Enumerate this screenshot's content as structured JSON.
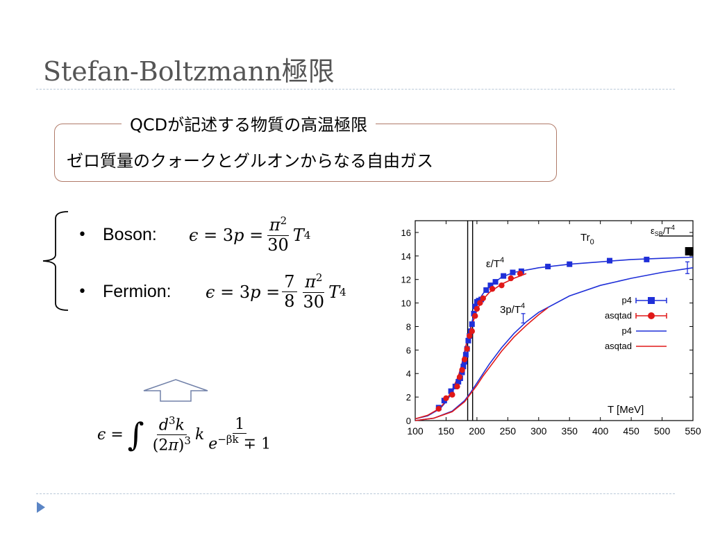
{
  "slide": {
    "title": "Stefan-Boltzmann極限",
    "callout_heading": "QCDが記述する物質の高温極限",
    "callout_text": "ゼロ質量のクォークとグルオンからなる自由ガス"
  },
  "bullets": [
    {
      "label": "Boson:",
      "formula": "ε = 3p = (π²/30) T⁴"
    },
    {
      "label": "Fermion:",
      "formula": "ε = 3p = (7/8)(π²/30) T⁴"
    }
  ],
  "bottom_formula": "ε = ∫ d³k/(2π)³ k 1/(e^{−βk} ∓ 1)",
  "colors": {
    "title": "#555555",
    "callout_border": "#b07a68",
    "arrow": "#7080a8",
    "p4": "#1f2fd8",
    "asqtad": "#e01818",
    "dash": "#b8c8d8"
  },
  "chart_data": {
    "type": "scatter",
    "xlim": [
      100,
      550
    ],
    "ylim": [
      0,
      17
    ],
    "x_ticks": [
      100,
      150,
      200,
      250,
      300,
      350,
      400,
      450,
      500,
      550
    ],
    "y_ticks": [
      0,
      2,
      4,
      6,
      8,
      10,
      12,
      14,
      16
    ],
    "xlabel": "T [MeV]",
    "annotations": {
      "tr0": "Tr",
      "tr0_sub": "0",
      "esb_a": "ε",
      "esb_sub": "SB",
      "esb_b": "/T",
      "esb_sup": "4",
      "eps_a": "ε/T",
      "eps_sup": "4",
      "threep_a": "3p/T",
      "threep_sup": "4"
    },
    "vertical_lines": [
      185,
      193
    ],
    "sb_limit": {
      "x": [
        495,
        550
      ],
      "y": 15.7
    },
    "sb_marker": {
      "x": 544,
      "y": 14.4
    },
    "error_bars": [
      {
        "x": 541,
        "y": 13.0,
        "err": 0.5
      },
      {
        "x": 275,
        "y": 8.7,
        "err": 0.4
      }
    ],
    "series": [
      {
        "name": "p4",
        "kind": "points",
        "marker": "square",
        "color": "#1f2fd8",
        "x": [
          138,
          147,
          158,
          165,
          170,
          173,
          176,
          178,
          180,
          182,
          184,
          186,
          188,
          190,
          192,
          195,
          197,
          200,
          203,
          207,
          215,
          222,
          230,
          243,
          258,
          272,
          315,
          350,
          415,
          475
        ],
        "y": [
          1.1,
          1.7,
          2.5,
          2.9,
          3.3,
          3.6,
          4.1,
          4.6,
          5.0,
          5.6,
          6.1,
          6.8,
          7.2,
          7.6,
          8.2,
          9.1,
          9.7,
          10.1,
          10.2,
          10.3,
          11.1,
          11.5,
          11.8,
          12.3,
          12.6,
          12.7,
          13.1,
          13.3,
          13.6,
          13.7
        ]
      },
      {
        "name": "asqtad",
        "kind": "points",
        "marker": "circle",
        "color": "#e01818",
        "x": [
          138,
          150,
          160,
          168,
          172,
          176,
          180,
          184,
          188,
          192,
          197,
          200,
          205,
          210,
          225,
          240,
          255,
          270
        ],
        "y": [
          1.0,
          1.9,
          2.2,
          2.9,
          3.7,
          4.3,
          5.2,
          6.1,
          7.2,
          7.6,
          8.9,
          9.5,
          10.0,
          10.4,
          11.2,
          11.5,
          12.1,
          12.5
        ]
      },
      {
        "name": "p4",
        "kind": "line",
        "color": "#1f2fd8"
      },
      {
        "name": "asqtad",
        "kind": "line",
        "color": "#e01818"
      }
    ],
    "curves": {
      "energy_p4": {
        "x": [
          100,
          120,
          140,
          150,
          160,
          170,
          175,
          180,
          185,
          190,
          195,
          200,
          205,
          210,
          220,
          240,
          260,
          300,
          350,
          400,
          450,
          500,
          550
        ],
        "y": [
          0.15,
          0.4,
          1.0,
          1.6,
          2.4,
          3.6,
          4.5,
          5.7,
          6.9,
          8.0,
          9.0,
          9.8,
          10.4,
          10.8,
          11.4,
          12.2,
          12.6,
          13.0,
          13.3,
          13.5,
          13.7,
          13.8,
          13.9
        ]
      },
      "energy_asqtad": {
        "x": [
          100,
          120,
          140,
          150,
          160,
          170,
          175,
          180,
          185,
          190,
          195,
          200,
          205,
          210,
          220,
          240,
          260,
          280
        ],
        "y": [
          0.15,
          0.45,
          1.05,
          1.7,
          2.6,
          3.8,
          4.7,
          5.9,
          7.0,
          7.8,
          8.6,
          9.4,
          9.9,
          10.3,
          10.9,
          11.6,
          12.1,
          12.5
        ]
      },
      "pressure_p4": {
        "x": [
          100,
          130,
          160,
          180,
          190,
          200,
          210,
          220,
          240,
          260,
          280,
          300,
          350,
          400,
          450,
          500,
          550
        ],
        "y": [
          0.0,
          0.2,
          0.8,
          1.7,
          2.4,
          3.2,
          4.0,
          4.8,
          6.2,
          7.4,
          8.4,
          9.2,
          10.6,
          11.5,
          12.1,
          12.6,
          13.0
        ]
      },
      "pressure_asqtad": {
        "x": [
          100,
          130,
          160,
          180,
          190,
          200,
          210,
          220,
          240,
          260,
          280,
          300,
          315
        ],
        "y": [
          0.0,
          0.2,
          0.75,
          1.6,
          2.3,
          3.0,
          3.8,
          4.5,
          5.9,
          7.1,
          8.1,
          9.0,
          9.6
        ]
      }
    }
  }
}
